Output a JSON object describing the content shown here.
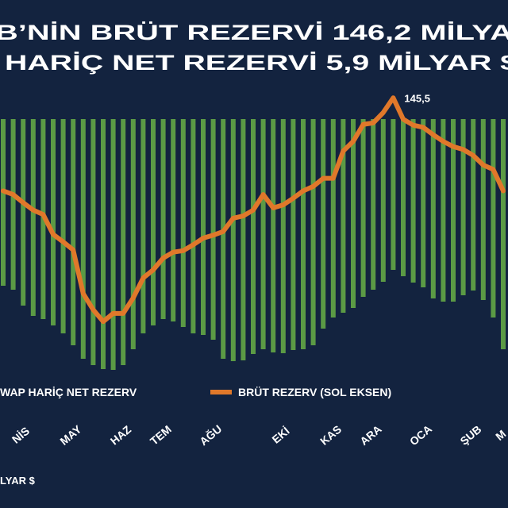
{
  "chart_data": {
    "type": "combo",
    "title": "B’NİN BRÜT REZERVİ 146,2 MİLYA",
    "subtitle": "HARİÇ NET REZERVİ 5,9 MİLYAR $",
    "note": "LYAR $",
    "categories": [
      null,
      null,
      "NİS",
      null,
      null,
      null,
      null,
      "MAY",
      null,
      null,
      null,
      null,
      "HAZ",
      null,
      null,
      null,
      "TEM",
      null,
      null,
      null,
      null,
      "AĞU",
      null,
      null,
      null,
      null,
      null,
      null,
      "EKİ",
      null,
      null,
      null,
      null,
      "KAS",
      null,
      null,
      null,
      "ARA",
      null,
      null,
      null,
      null,
      "OCA",
      null,
      null,
      null,
      null,
      "ŞUB",
      null,
      null,
      "M"
    ],
    "ylim": [
      105,
      148
    ],
    "y2lim": [
      -70,
      10
    ],
    "series": [
      {
        "name": "WAP HARİÇ NET REZERV",
        "type": "bar",
        "axis": "y2",
        "color": "#5b9a45",
        "values": [
          -42,
          -43,
          -47,
          -49.6,
          -50.4,
          -52,
          -54,
          -57,
          -60.4,
          -62,
          -63,
          -63.2,
          -62,
          -58,
          -54,
          -52,
          -50.4,
          -51,
          -52.4,
          -54,
          -54.4,
          -55.6,
          -60.4,
          -61,
          -60.8,
          -59.2,
          -58,
          -58.8,
          -59,
          -58.2,
          -58,
          -57,
          -52.8,
          -50,
          -48.8,
          -47.6,
          -44.8,
          -43,
          -41,
          -38,
          -39.6,
          -41.2,
          -42.4,
          -45.2,
          -46,
          -46,
          -44.4,
          -43.2,
          -45.6,
          -50,
          -58
        ]
      },
      {
        "name": "BRÜT REZERV (SOL EKSEN)",
        "type": "line",
        "axis": "y",
        "color": "#e0782a",
        "values": [
          132.9,
          132.4,
          131.3,
          130.3,
          129.7,
          127.0,
          126.0,
          124.9,
          119.0,
          116.8,
          115.2,
          116.3,
          116.3,
          118.4,
          121.1,
          122.2,
          123.8,
          124.6,
          124.8,
          125.6,
          126.5,
          126.9,
          127.4,
          129.2,
          129.5,
          130.3,
          132.4,
          130.6,
          131.0,
          131.9,
          132.9,
          133.5,
          134.6,
          134.6,
          138.3,
          139.6,
          141.9,
          142.1,
          143.5,
          145.5,
          142.6,
          141.8,
          141.5,
          140.5,
          139.6,
          138.9,
          138.5,
          137.7,
          136.4,
          135.8,
          132.9
        ],
        "value_labels": [
          null,
          null,
          null,
          null,
          null,
          null,
          null,
          null,
          null,
          null,
          null,
          null,
          null,
          null,
          null,
          null,
          null,
          null,
          null,
          null,
          null,
          null,
          null,
          null,
          null,
          null,
          null,
          null,
          null,
          null,
          null,
          null,
          null,
          null,
          null,
          null,
          null,
          null,
          null,
          "145,5",
          null,
          null,
          null,
          null,
          null,
          null,
          null,
          null,
          null,
          null,
          null
        ]
      }
    ]
  }
}
